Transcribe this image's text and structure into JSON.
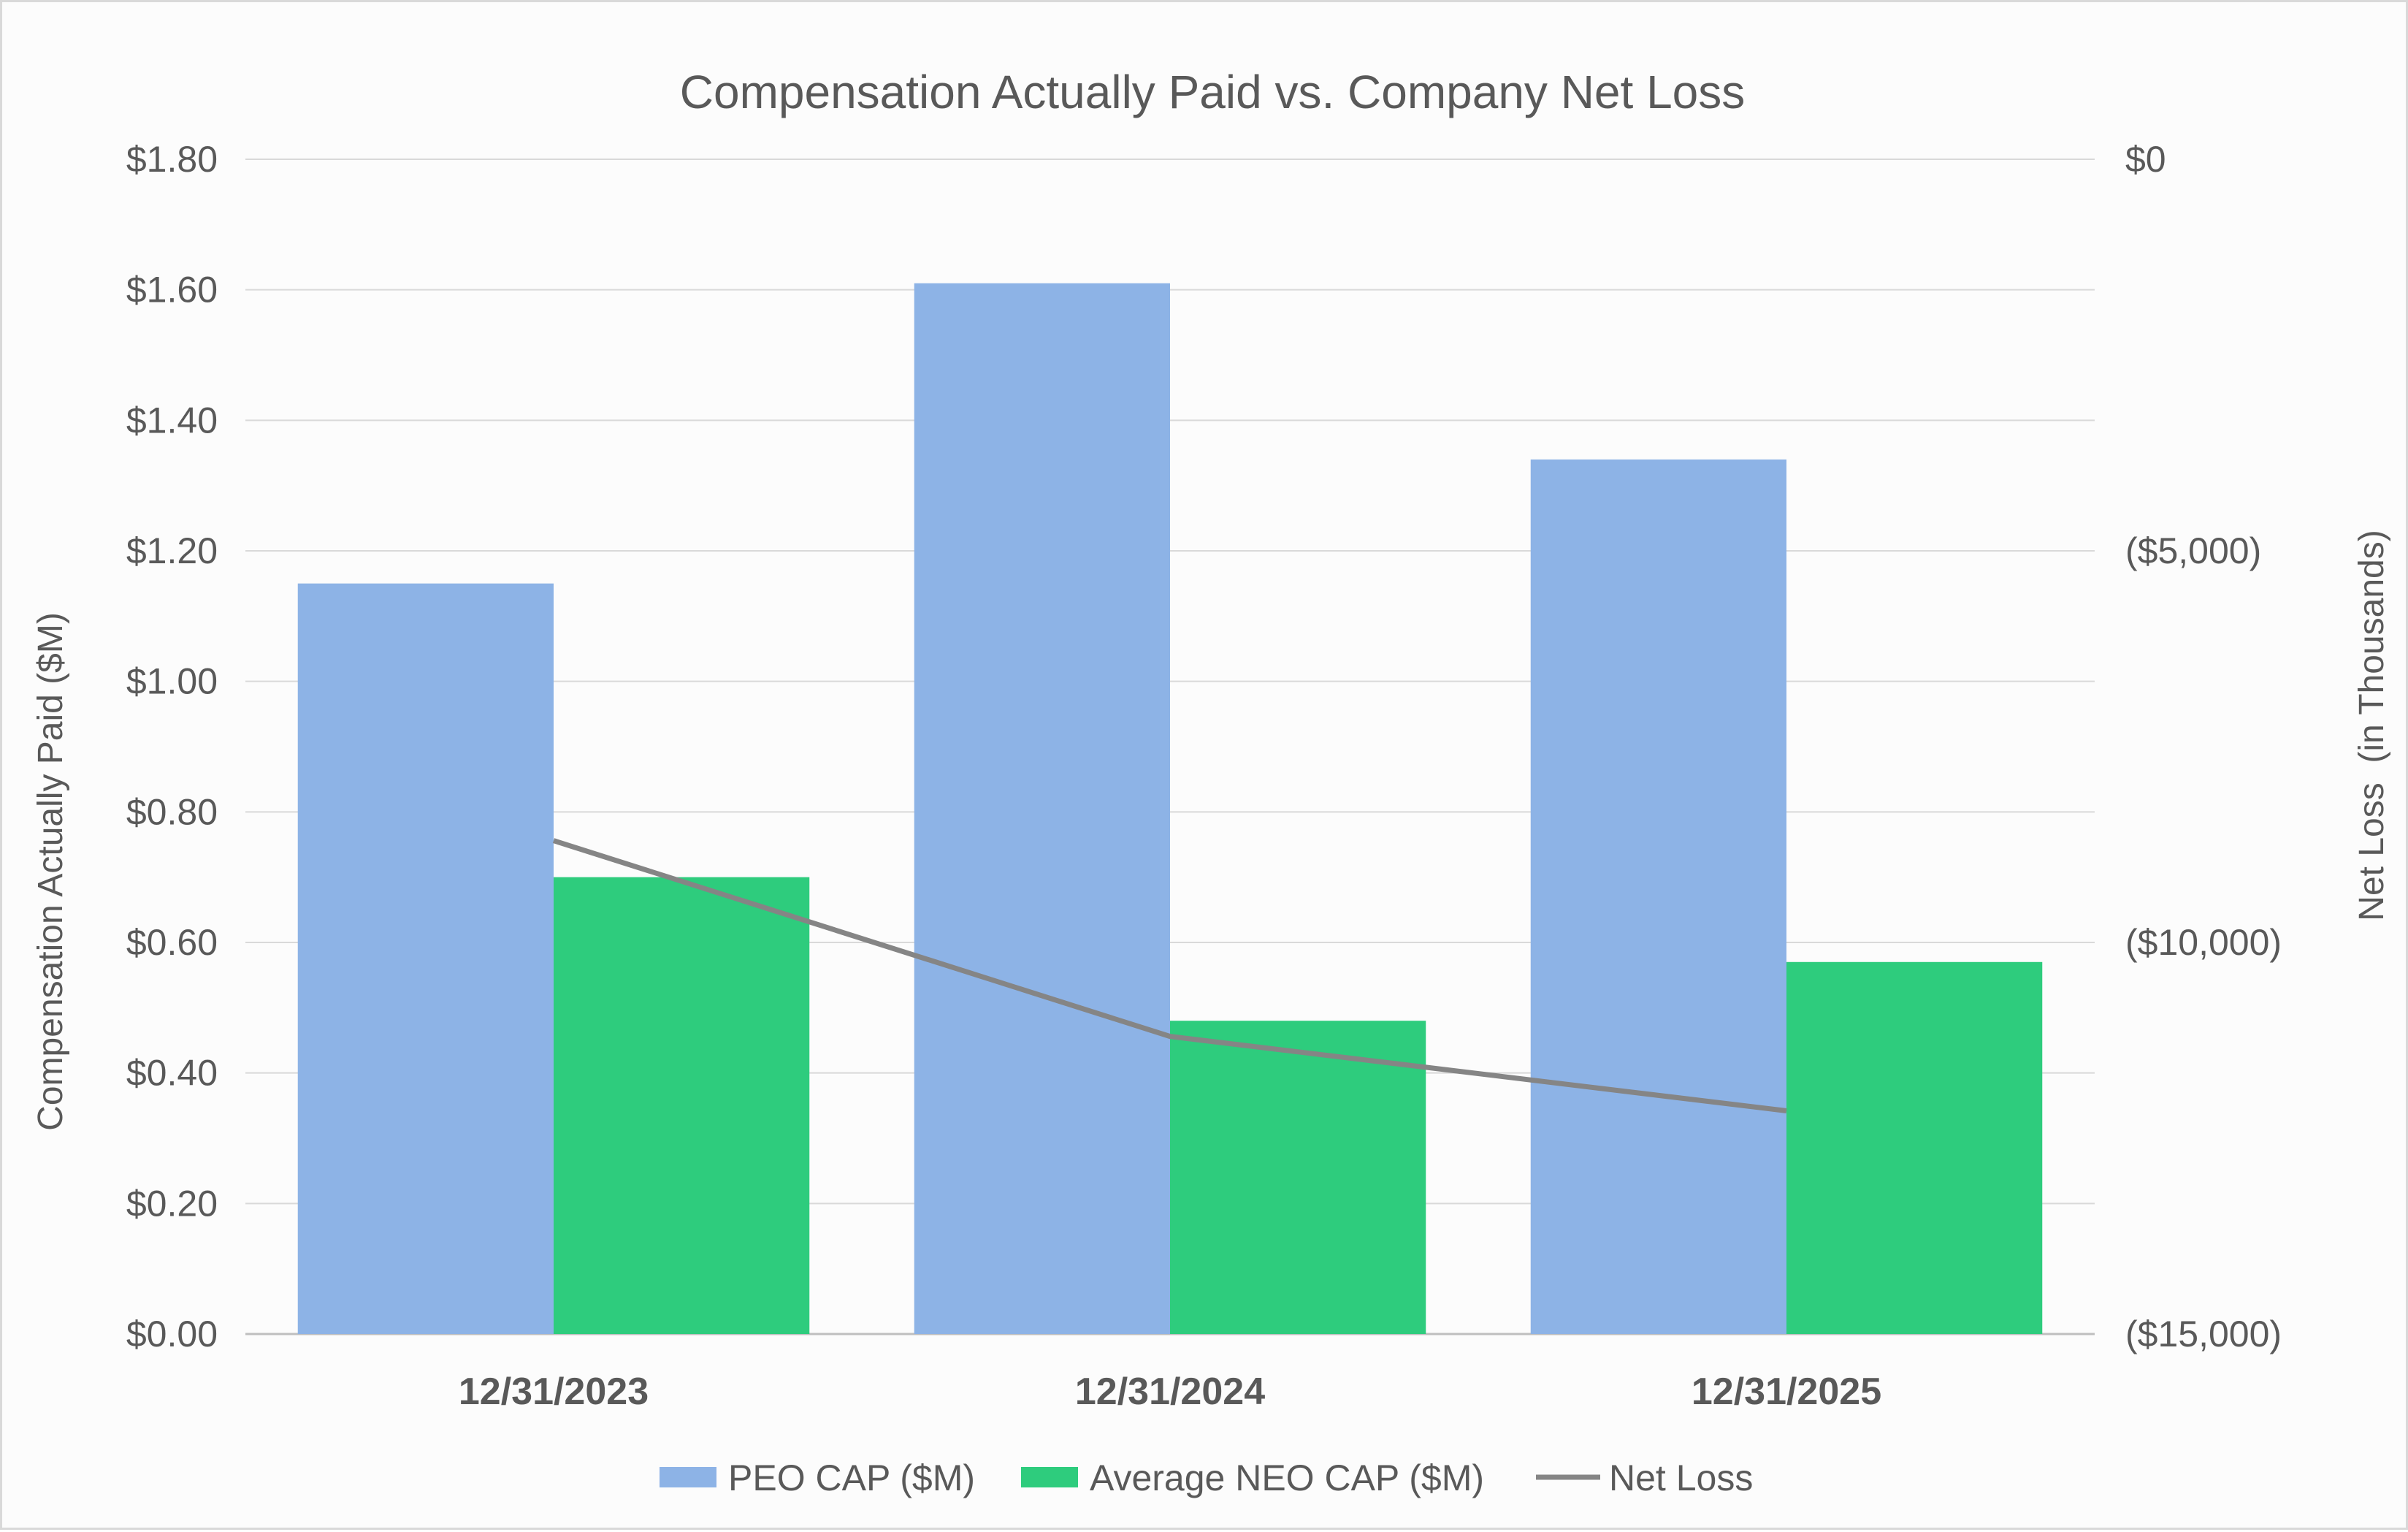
{
  "chart_data": {
    "type": "bar",
    "title": "Compensation Actually Paid vs. Company Net Loss",
    "categories": [
      "12/31/2023",
      "12/31/2024",
      "12/31/2025"
    ],
    "ylabel": "Compensation Actually Paid ($M)",
    "y2label": "Net Loss  (in Thousands)",
    "ylim": [
      0,
      1.8
    ],
    "y2lim": [
      -15000,
      0
    ],
    "yticks": [
      "$0.00",
      "$0.20",
      "$0.40",
      "$0.60",
      "$0.80",
      "$1.00",
      "$1.20",
      "$1.40",
      "$1.60",
      "$1.80"
    ],
    "y2ticks": [
      "($15,000)",
      "($10,000)",
      "($5,000)",
      "$0"
    ],
    "grid": true,
    "legend_position": "bottom",
    "series": [
      {
        "name": "PEO CAP ($M)",
        "type": "bar",
        "axis": "left",
        "color": "#8db3e6",
        "values": [
          1.15,
          1.61,
          1.34
        ]
      },
      {
        "name": "Average NEO CAP ($M)",
        "type": "bar",
        "axis": "left",
        "color": "#2ecc7d",
        "values": [
          0.7,
          0.48,
          0.57
        ]
      },
      {
        "name": "Net Loss",
        "type": "line",
        "axis": "right",
        "color": "#858585",
        "values": [
          -8700,
          -11200,
          -12150
        ]
      }
    ]
  }
}
